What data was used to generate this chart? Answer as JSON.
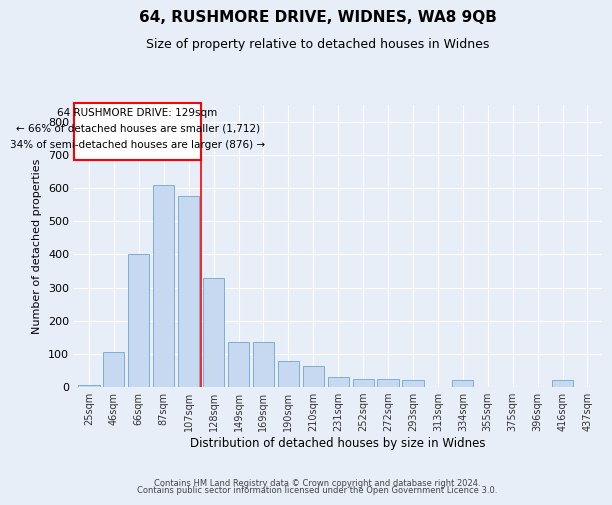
{
  "title1": "64, RUSHMORE DRIVE, WIDNES, WA8 9QB",
  "title2": "Size of property relative to detached houses in Widnes",
  "xlabel": "Distribution of detached houses by size in Widnes",
  "ylabel": "Number of detached properties",
  "bar_labels": [
    "25sqm",
    "46sqm",
    "66sqm",
    "87sqm",
    "107sqm",
    "128sqm",
    "149sqm",
    "169sqm",
    "190sqm",
    "210sqm",
    "231sqm",
    "252sqm",
    "272sqm",
    "293sqm",
    "313sqm",
    "334sqm",
    "355sqm",
    "375sqm",
    "396sqm",
    "416sqm",
    "437sqm"
  ],
  "bar_values": [
    5,
    105,
    400,
    610,
    575,
    330,
    135,
    135,
    80,
    65,
    30,
    25,
    25,
    20,
    0,
    20,
    0,
    0,
    0,
    20,
    0
  ],
  "bar_color": "#c6d9f0",
  "bar_edgecolor": "#7bafd4",
  "red_line_index": 5,
  "annotation_line1": "64 RUSHMORE DRIVE: 129sqm",
  "annotation_line2": "← 66% of detached houses are smaller (1,712)",
  "annotation_line3": "34% of semi-detached houses are larger (876) →",
  "ylim": [
    0,
    850
  ],
  "yticks": [
    0,
    100,
    200,
    300,
    400,
    500,
    600,
    700,
    800
  ],
  "background_color": "#e8eef8",
  "grid_color": "#ffffff",
  "footer1": "Contains HM Land Registry data © Crown copyright and database right 2024.",
  "footer2": "Contains public sector information licensed under the Open Government Licence 3.0.",
  "title1_fontsize": 11,
  "title2_fontsize": 9,
  "annotation_fontsize": 7.5
}
